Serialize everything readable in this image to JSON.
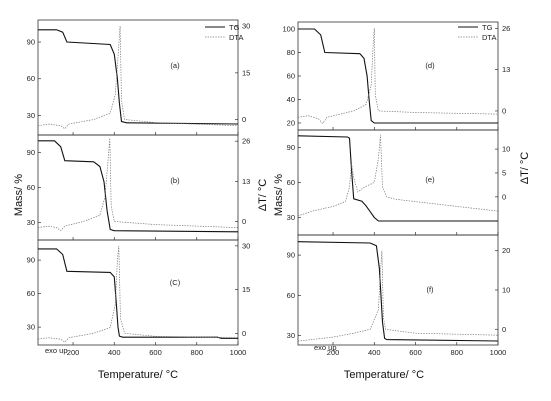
{
  "legend": {
    "tg": "TG",
    "dta": "DTA"
  },
  "axes": {
    "x_label": "Temperature/ °C",
    "left_label": "Mass/ %",
    "right_label": "ΔT/ °C"
  },
  "exo_note": "exo up",
  "chart_data": [
    {
      "type": "line",
      "panel_label": "(a)",
      "x_ticks": [
        200,
        400,
        600,
        800,
        1000
      ],
      "mass_ticks": [
        30,
        60,
        90
      ],
      "dt_ticks": [
        0,
        15,
        30
      ],
      "series": [
        {
          "name": "TG",
          "x": [
            30,
            120,
            150,
            170,
            380,
            400,
            415,
            425,
            435,
            460,
            1000
          ],
          "y": [
            100,
            100,
            98,
            90,
            88,
            80,
            60,
            40,
            25,
            24,
            23
          ]
        },
        {
          "name": "DTA",
          "x": [
            30,
            80,
            140,
            160,
            180,
            300,
            380,
            405,
            420,
            428,
            435,
            450,
            600,
            1000
          ],
          "y": [
            -2,
            -1.5,
            -2,
            -3,
            -1.5,
            0,
            2,
            8,
            22,
            30,
            6,
            0,
            -1,
            -2
          ]
        }
      ]
    },
    {
      "type": "line",
      "panel_label": "(b)",
      "x_ticks": [
        200,
        400,
        600,
        800,
        1000
      ],
      "mass_ticks": [
        30,
        60,
        90
      ],
      "dt_ticks": [
        0,
        13,
        26
      ],
      "series": [
        {
          "name": "TG",
          "x": [
            30,
            110,
            140,
            160,
            300,
            330,
            350,
            365,
            380,
            400,
            1000
          ],
          "y": [
            100,
            100,
            95,
            83,
            82,
            78,
            65,
            40,
            24,
            23,
            22
          ]
        },
        {
          "name": "DTA",
          "x": [
            30,
            80,
            120,
            140,
            160,
            250,
            330,
            355,
            370,
            378,
            385,
            400,
            600,
            1000
          ],
          "y": [
            -2,
            -1.5,
            -2,
            -3,
            -1.5,
            0,
            2,
            8,
            20,
            27,
            5,
            0,
            -1,
            -2
          ]
        }
      ]
    },
    {
      "type": "line",
      "panel_label": "(C)",
      "x_ticks": [
        200,
        400,
        600,
        800,
        1000
      ],
      "mass_ticks": [
        30,
        60,
        90
      ],
      "dt_ticks": [
        0,
        15,
        30
      ],
      "series": [
        {
          "name": "TG",
          "x": [
            30,
            120,
            150,
            170,
            380,
            400,
            410,
            418,
            425,
            440,
            900,
            920,
            1000
          ],
          "y": [
            100,
            100,
            95,
            80,
            79,
            75,
            50,
            30,
            22,
            21,
            21,
            20,
            20
          ]
        },
        {
          "name": "DTA",
          "x": [
            30,
            80,
            140,
            160,
            180,
            300,
            380,
            405,
            415,
            422,
            430,
            450,
            600,
            1000
          ],
          "y": [
            -2,
            -1.5,
            -2,
            -3,
            -1.5,
            0,
            2,
            10,
            25,
            30,
            5,
            0,
            -1,
            -1.5
          ]
        }
      ]
    },
    {
      "type": "line",
      "panel_label": "(d)",
      "x_ticks": [
        200,
        400,
        600,
        800,
        1000
      ],
      "mass_ticks": [
        20,
        40,
        60,
        80,
        100
      ],
      "dt_ticks": [
        0,
        13,
        26
      ],
      "series": [
        {
          "name": "TG",
          "x": [
            30,
            110,
            140,
            160,
            330,
            350,
            365,
            375,
            385,
            400,
            1000
          ],
          "y": [
            100,
            100,
            95,
            80,
            79,
            75,
            60,
            40,
            22,
            20,
            20
          ]
        },
        {
          "name": "DTA",
          "x": [
            30,
            80,
            130,
            150,
            170,
            300,
            360,
            385,
            395,
            400,
            405,
            420,
            600,
            1000
          ],
          "y": [
            -2,
            -1.5,
            -2.5,
            -4,
            -2,
            0,
            2,
            8,
            22,
            26,
            5,
            0,
            -0.5,
            -1
          ]
        }
      ]
    },
    {
      "type": "line",
      "panel_label": "(e)",
      "x_ticks": [
        200,
        400,
        600,
        800,
        1000
      ],
      "mass_ticks": [
        30,
        60,
        90
      ],
      "dt_ticks": [
        0,
        5,
        10
      ],
      "series": [
        {
          "name": "TG",
          "x": [
            30,
            270,
            280,
            290,
            300,
            340,
            360,
            380,
            400,
            420,
            600,
            1000
          ],
          "y": [
            100,
            99,
            98,
            70,
            46,
            44,
            40,
            35,
            30,
            27,
            27,
            27
          ]
        },
        {
          "name": "DTA",
          "x": [
            30,
            100,
            200,
            260,
            280,
            290,
            300,
            320,
            350,
            400,
            420,
            430,
            440,
            460,
            500,
            600,
            800,
            1000
          ],
          "y": [
            -4,
            -3,
            -2,
            -1,
            2,
            7,
            4,
            1,
            2,
            3,
            8,
            13,
            2,
            0,
            -0.5,
            -1,
            -2,
            -3
          ]
        }
      ]
    },
    {
      "type": "line",
      "panel_label": "(f)",
      "x_ticks": [
        200,
        400,
        600,
        800,
        1000
      ],
      "mass_ticks": [
        30,
        60,
        90
      ],
      "dt_ticks": [
        0,
        10,
        20
      ],
      "series": [
        {
          "name": "TG",
          "x": [
            30,
            380,
            410,
            425,
            440,
            450,
            460,
            1000
          ],
          "y": [
            100,
            99,
            97,
            80,
            40,
            28,
            27,
            26
          ]
        },
        {
          "name": "DTA",
          "x": [
            30,
            200,
            300,
            380,
            420,
            430,
            437,
            444,
            455,
            600,
            1000
          ],
          "y": [
            -3,
            -2,
            -1,
            0,
            5,
            15,
            20,
            3,
            0,
            -1,
            -1.5
          ]
        }
      ]
    }
  ]
}
